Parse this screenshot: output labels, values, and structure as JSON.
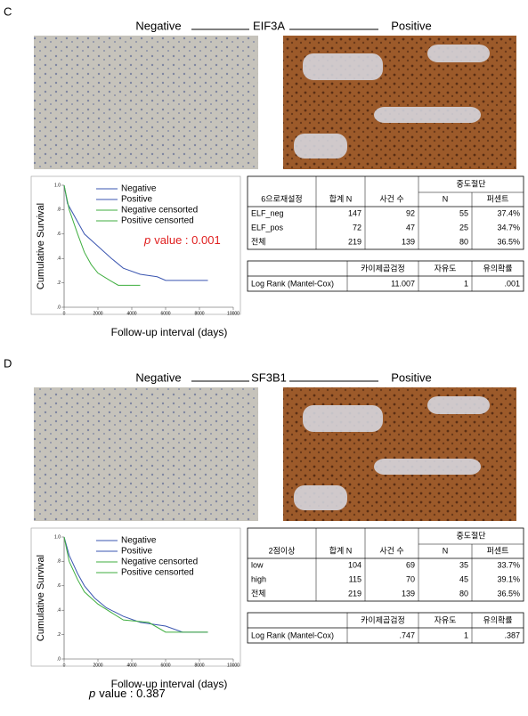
{
  "panels": [
    {
      "label": "C",
      "gene": "EIF3A",
      "negative": "Negative",
      "positive": "Positive",
      "table": {
        "head": [
          "6으로재설정",
          "합계 N",
          "사건 수",
          "중도절단"
        ],
        "subhead": [
          "N",
          "퍼센트"
        ],
        "rows": [
          [
            "ELF_neg",
            "147",
            "92",
            "55",
            "37.4%"
          ],
          [
            "ELF_pos",
            "72",
            "47",
            "25",
            "34.7%"
          ],
          [
            "전체",
            "219",
            "139",
            "80",
            "36.5%"
          ]
        ]
      },
      "test": {
        "head": [
          "카이제곱검정",
          "자유도",
          "유의확률"
        ],
        "row": [
          "Log Rank (Mantel-Cox)",
          "11.007",
          "1",
          ".001"
        ]
      },
      "p_italic": "p",
      "p_text": "value : 0.001",
      "p_color": "#e02020"
    },
    {
      "label": "D",
      "gene": "SF3B1",
      "negative": "Negative",
      "positive": "Positive",
      "table": {
        "head": [
          "2점이상",
          "합계 N",
          "사건 수",
          "중도절단"
        ],
        "subhead": [
          "N",
          "퍼센트"
        ],
        "rows": [
          [
            "low",
            "104",
            "69",
            "35",
            "33.7%"
          ],
          [
            "high",
            "115",
            "70",
            "45",
            "39.1%"
          ],
          [
            "전체",
            "219",
            "139",
            "80",
            "36.5%"
          ]
        ]
      },
      "test": {
        "head": [
          "카이제곱검정",
          "자유도",
          "유의확률"
        ],
        "row": [
          "Log Rank (Mantel-Cox)",
          ".747",
          "1",
          ".387"
        ]
      },
      "p_italic": "p",
      "p_text": "value : 0.387",
      "p_color": "#000000"
    }
  ],
  "chart_data": [
    {
      "type": "line",
      "ylabel": "Cumulative  Survival",
      "xlabel": "Follow-up interval  (days)",
      "xlim": [
        0,
        10000
      ],
      "ylim": [
        0,
        1
      ],
      "xticks": [
        0,
        2000,
        4000,
        6000,
        8000,
        10000
      ],
      "yticks": [
        {
          "value": 0,
          "label": ".0"
        },
        {
          "value": 0.2,
          "label": ".2"
        },
        {
          "value": 0.4,
          "label": ".4"
        },
        {
          "value": 0.6,
          "label": ".6"
        },
        {
          "value": 0.8,
          "label": ".8"
        },
        {
          "value": 1,
          "label": "1.0"
        }
      ],
      "series": [
        {
          "name": "Negative",
          "color": "#3a55b0",
          "x": [
            0,
            200,
            800,
            1200,
            2000,
            2800,
            3500,
            4500,
            5500,
            6000,
            8500
          ],
          "values": [
            1,
            0.85,
            0.7,
            0.6,
            0.5,
            0.4,
            0.32,
            0.27,
            0.25,
            0.22,
            0.22
          ]
        },
        {
          "name": "Positive",
          "color": "#3fae3f",
          "x": [
            0,
            300,
            800,
            1200,
            1600,
            2000,
            2700,
            3200,
            4500
          ],
          "values": [
            1,
            0.8,
            0.6,
            0.45,
            0.35,
            0.28,
            0.22,
            0.18,
            0.18
          ]
        }
      ],
      "censor_legend": [
        "Negative censorted",
        "Positive censorted"
      ]
    },
    {
      "type": "line",
      "ylabel": "Cumulative  Survival",
      "xlabel": "Follow-up interval  (days)",
      "xlim": [
        0,
        10000
      ],
      "ylim": [
        0,
        1
      ],
      "xticks": [
        0,
        2000,
        4000,
        6000,
        8000,
        10000
      ],
      "yticks": [
        {
          "value": 0,
          "label": ".0"
        },
        {
          "value": 0.2,
          "label": ".2"
        },
        {
          "value": 0.4,
          "label": ".4"
        },
        {
          "value": 0.6,
          "label": ".6"
        },
        {
          "value": 0.8,
          "label": ".8"
        },
        {
          "value": 1,
          "label": "1.0"
        }
      ],
      "series": [
        {
          "name": "Negative",
          "color": "#3a55b0",
          "x": [
            0,
            300,
            800,
            1200,
            1800,
            2500,
            3500,
            4500,
            6000,
            7000,
            8500
          ],
          "values": [
            1,
            0.85,
            0.7,
            0.6,
            0.5,
            0.42,
            0.35,
            0.3,
            0.27,
            0.22,
            0.22
          ]
        },
        {
          "name": "Positive",
          "color": "#3fae3f",
          "x": [
            0,
            300,
            800,
            1200,
            2000,
            2800,
            3500,
            5000,
            6000,
            8500
          ],
          "values": [
            1,
            0.8,
            0.65,
            0.55,
            0.45,
            0.38,
            0.32,
            0.3,
            0.22,
            0.22
          ]
        }
      ],
      "censor_legend": [
        "Negative censorted",
        "Positive censorted"
      ]
    }
  ]
}
